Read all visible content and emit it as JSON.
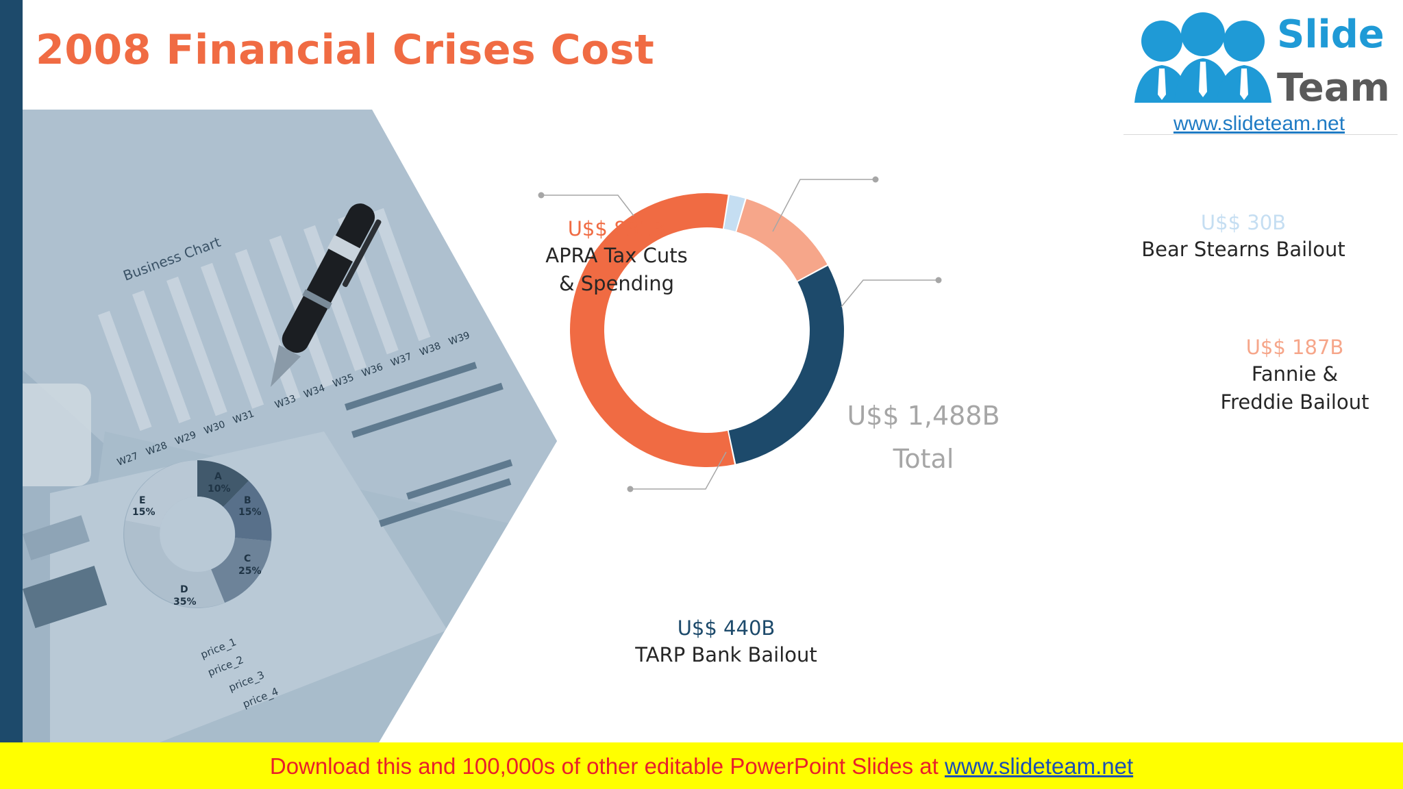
{
  "slide": {
    "title": "2008 Financial Crises Cost"
  },
  "logo": {
    "word1": "Slide",
    "word2": "Team",
    "url": "www.slideteam.net"
  },
  "banner": {
    "text": "Download this and 100,000s of other editable PowerPoint Slides at ",
    "link": "www.slideteam.net"
  },
  "photo": {
    "chart_title": "Business Chart",
    "week_labels": [
      "W27",
      "W28",
      "W29",
      "W30",
      "W31",
      "W33",
      "W34",
      "W35",
      "W36",
      "W37",
      "W38",
      "W39"
    ],
    "donut_labels": [
      {
        "letter": "A",
        "pct": "10%"
      },
      {
        "letter": "B",
        "pct": "15%"
      },
      {
        "letter": "C",
        "pct": "25%"
      },
      {
        "letter": "D",
        "pct": "35%"
      },
      {
        "letter": "E",
        "pct": "15%"
      }
    ],
    "legend": [
      "price_1",
      "price_2",
      "price_3",
      "price_4"
    ]
  },
  "chart_data": {
    "type": "pie",
    "title": "",
    "unit": "U$$ B",
    "total": {
      "value_label": "U$$ 1,488B",
      "label": "Total"
    },
    "slices": [
      {
        "name": "Bear Stearns Bailout",
        "label_lines": [
          "Bear Stearns Bailout"
        ],
        "value": 30,
        "value_label": "U$$ 30B",
        "color": "#c5def2"
      },
      {
        "name": "Fannie & Freddie Bailout",
        "label_lines": [
          "Fannie &",
          "Freddie Bailout"
        ],
        "value": 187,
        "value_label": "U$$ 187B",
        "color": "#f6a68a"
      },
      {
        "name": "TARP Bank Bailout",
        "label_lines": [
          "TARP Bank Bailout"
        ],
        "value": 440,
        "value_label": "U$$ 440B",
        "color": "#1d4a6b"
      },
      {
        "name": "APRA Tax Cuts & Spending",
        "label_lines": [
          "APRA Tax Cuts",
          "& Spending"
        ],
        "value": 831,
        "value_label": "U$$ 831B",
        "color": "#f06b43"
      }
    ],
    "value_colors": {
      "Bear Stearns Bailout": "#c5def2",
      "Fannie & Freddie Bailout": "#f6a68a",
      "TARP Bank Bailout": "#1d4a6b",
      "APRA Tax Cuts & Spending": "#f06b43"
    }
  }
}
